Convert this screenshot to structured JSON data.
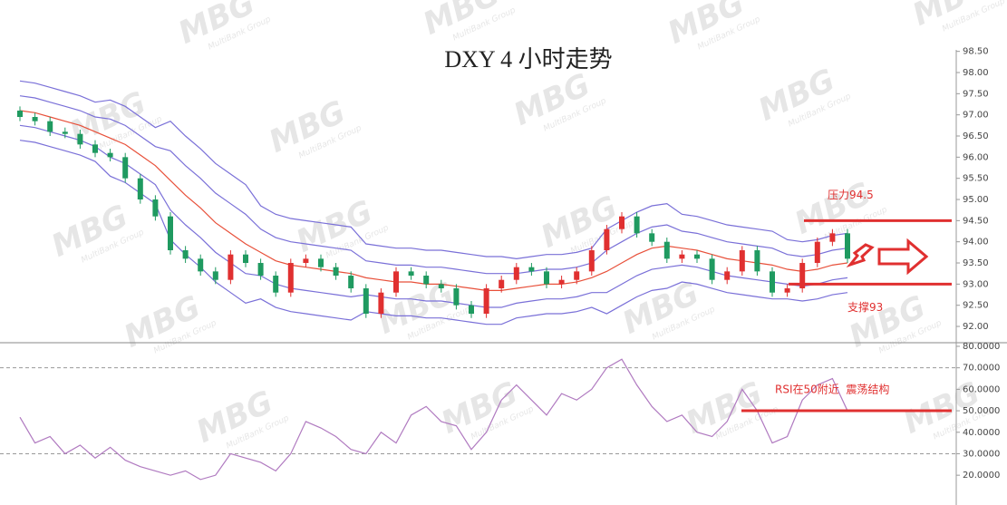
{
  "watermark": "MBG",
  "watermark_sub": "MultiBank Group",
  "chart_data": [
    {
      "type": "candlestick",
      "title": "DXY 4 小时走势",
      "ylim": [
        91.6,
        98.6
      ],
      "yticks": [
        {
          "value": 92,
          "label": "92.00"
        },
        {
          "value": 92.5,
          "label": "92.50"
        },
        {
          "value": 93,
          "label": "93.00"
        },
        {
          "value": 93.5,
          "label": "93.50"
        },
        {
          "value": 94,
          "label": "94.00"
        },
        {
          "value": 94.5,
          "label": "94.50"
        },
        {
          "value": 95,
          "label": "95.00"
        },
        {
          "value": 95.5,
          "label": "95.50"
        },
        {
          "value": 96,
          "label": "96.00"
        },
        {
          "value": 96.5,
          "label": "96.50"
        },
        {
          "value": 97,
          "label": "97.00"
        },
        {
          "value": 97.5,
          "label": "97.50"
        },
        {
          "value": 98,
          "label": "98.00"
        },
        {
          "value": 98.5,
          "label": "98.50"
        }
      ],
      "up_color": "#e03030",
      "down_color": "#1f9a60",
      "open": [
        97.1,
        96.95,
        96.85,
        96.6,
        96.55,
        96.3,
        96.1,
        96.0,
        95.5,
        95.0,
        94.6,
        93.8,
        93.6,
        93.3,
        93.1,
        93.7,
        93.5,
        93.2,
        92.8,
        93.5,
        93.6,
        93.4,
        93.2,
        92.9,
        92.3,
        92.8,
        93.3,
        93.2,
        93.0,
        92.9,
        92.5,
        92.3,
        92.9,
        93.1,
        93.4,
        93.3,
        93.0,
        93.1,
        93.3,
        93.8,
        94.3,
        94.6,
        94.2,
        94.0,
        93.6,
        93.7,
        93.6,
        93.1,
        93.3,
        93.8,
        93.3,
        92.8,
        92.9,
        93.5,
        94.0,
        94.2
      ],
      "high": [
        97.2,
        97.05,
        96.95,
        96.7,
        96.65,
        96.4,
        96.2,
        96.1,
        95.6,
        95.1,
        94.7,
        93.9,
        93.7,
        93.4,
        93.8,
        93.8,
        93.6,
        93.3,
        93.6,
        93.7,
        93.7,
        93.5,
        93.3,
        93.0,
        92.9,
        93.4,
        93.4,
        93.3,
        93.1,
        93.0,
        92.6,
        93.0,
        93.2,
        93.5,
        93.5,
        93.4,
        93.2,
        93.4,
        93.9,
        94.4,
        94.7,
        94.7,
        94.3,
        94.1,
        93.8,
        93.8,
        93.7,
        93.4,
        93.9,
        93.9,
        93.4,
        93.0,
        93.6,
        94.1,
        94.3,
        94.3
      ],
      "low": [
        96.85,
        96.75,
        96.5,
        96.45,
        96.2,
        96.0,
        95.9,
        95.4,
        94.9,
        94.5,
        93.7,
        93.5,
        93.2,
        93.0,
        93.0,
        93.4,
        93.1,
        92.7,
        92.7,
        93.4,
        93.3,
        93.1,
        92.8,
        92.2,
        92.2,
        92.7,
        93.1,
        92.9,
        92.8,
        92.4,
        92.2,
        92.2,
        92.8,
        93.0,
        93.2,
        92.9,
        92.9,
        93.0,
        93.2,
        93.7,
        94.2,
        94.1,
        93.9,
        93.5,
        93.5,
        93.5,
        93.0,
        93.0,
        93.2,
        93.2,
        92.7,
        92.7,
        92.8,
        93.4,
        93.9,
        93.5
      ],
      "close": [
        96.95,
        96.85,
        96.6,
        96.55,
        96.3,
        96.1,
        96.0,
        95.5,
        95.0,
        94.6,
        93.8,
        93.6,
        93.3,
        93.1,
        93.7,
        93.5,
        93.2,
        92.8,
        93.5,
        93.6,
        93.4,
        93.2,
        92.9,
        92.3,
        92.8,
        93.3,
        93.2,
        93.0,
        92.9,
        92.5,
        92.3,
        92.9,
        93.1,
        93.4,
        93.3,
        93.0,
        93.1,
        93.3,
        93.8,
        94.3,
        94.6,
        94.2,
        94.0,
        93.6,
        93.7,
        93.6,
        93.1,
        93.3,
        93.8,
        93.3,
        92.8,
        92.9,
        93.5,
        94.0,
        94.2,
        93.6
      ],
      "lines": [
        {
          "color": "#7a70d8",
          "values": [
            97.8,
            97.75,
            97.65,
            97.55,
            97.45,
            97.3,
            97.35,
            97.2,
            96.95,
            96.7,
            96.85,
            96.5,
            96.2,
            95.85,
            95.6,
            95.35,
            94.85,
            94.65,
            94.55,
            94.5,
            94.45,
            94.4,
            94.35,
            93.95,
            93.9,
            93.85,
            93.85,
            93.8,
            93.8,
            93.75,
            93.7,
            93.65,
            93.65,
            93.6,
            93.65,
            93.7,
            93.7,
            93.75,
            93.85,
            94.3,
            94.5,
            94.7,
            94.85,
            94.9,
            94.65,
            94.6,
            94.5,
            94.4,
            94.35,
            94.3,
            94.25,
            94.05,
            94.0,
            94.05,
            94.15,
            94.2
          ]
        },
        {
          "color": "#7a70d8",
          "values": [
            97.45,
            97.4,
            97.3,
            97.2,
            97.1,
            96.95,
            96.9,
            96.75,
            96.5,
            96.25,
            96.15,
            95.8,
            95.5,
            95.15,
            94.9,
            94.65,
            94.3,
            94.1,
            94.0,
            93.95,
            93.9,
            93.85,
            93.8,
            93.55,
            93.5,
            93.45,
            93.45,
            93.4,
            93.4,
            93.35,
            93.3,
            93.25,
            93.25,
            93.25,
            93.3,
            93.35,
            93.35,
            93.4,
            93.5,
            93.8,
            94.0,
            94.2,
            94.35,
            94.4,
            94.25,
            94.2,
            94.1,
            94.0,
            93.95,
            93.9,
            93.85,
            93.7,
            93.65,
            93.7,
            93.8,
            93.85
          ]
        },
        {
          "color": "#e8503a",
          "values": [
            97.1,
            97.05,
            96.95,
            96.85,
            96.75,
            96.6,
            96.45,
            96.3,
            96.05,
            95.8,
            95.45,
            95.1,
            94.8,
            94.45,
            94.2,
            93.95,
            93.75,
            93.55,
            93.45,
            93.4,
            93.35,
            93.3,
            93.25,
            93.15,
            93.1,
            93.05,
            93.05,
            93.0,
            93.0,
            92.95,
            92.9,
            92.85,
            92.85,
            92.9,
            92.95,
            93.0,
            93.0,
            93.05,
            93.15,
            93.3,
            93.5,
            93.7,
            93.85,
            93.9,
            93.85,
            93.8,
            93.7,
            93.6,
            93.55,
            93.5,
            93.45,
            93.35,
            93.3,
            93.35,
            93.45,
            93.5
          ]
        },
        {
          "color": "#7a70d8",
          "values": [
            96.75,
            96.7,
            96.6,
            96.5,
            96.4,
            96.25,
            96.0,
            95.85,
            95.6,
            95.35,
            94.75,
            94.4,
            94.1,
            93.75,
            93.5,
            93.25,
            93.2,
            93.0,
            92.9,
            92.85,
            92.8,
            92.75,
            92.7,
            92.75,
            92.7,
            92.65,
            92.65,
            92.6,
            92.6,
            92.55,
            92.5,
            92.45,
            92.45,
            92.55,
            92.6,
            92.65,
            92.65,
            92.7,
            92.8,
            92.8,
            93.0,
            93.2,
            93.35,
            93.4,
            93.45,
            93.4,
            93.3,
            93.2,
            93.15,
            93.1,
            93.05,
            93.0,
            92.95,
            93.0,
            93.1,
            93.15
          ]
        },
        {
          "color": "#7a70d8",
          "values": [
            96.4,
            96.35,
            96.25,
            96.15,
            96.05,
            95.9,
            95.55,
            95.4,
            95.15,
            94.9,
            94.05,
            93.7,
            93.4,
            93.05,
            92.8,
            92.55,
            92.65,
            92.45,
            92.35,
            92.3,
            92.25,
            92.2,
            92.15,
            92.35,
            92.3,
            92.25,
            92.25,
            92.2,
            92.2,
            92.15,
            92.1,
            92.05,
            92.05,
            92.2,
            92.25,
            92.3,
            92.3,
            92.35,
            92.45,
            92.3,
            92.5,
            92.7,
            92.85,
            92.9,
            93.05,
            93.0,
            92.9,
            92.8,
            92.75,
            92.7,
            92.65,
            92.65,
            92.6,
            92.65,
            92.75,
            92.8
          ]
        }
      ],
      "levels": [
        {
          "value": 94.5,
          "label": "压力94.5",
          "color": "#e03030"
        },
        {
          "value": 93,
          "label": "支撑93",
          "color": "#e03030"
        }
      ]
    },
    {
      "type": "line",
      "ylim": [
        15,
        81
      ],
      "yticks": [
        {
          "value": 20,
          "label": "20.0000"
        },
        {
          "value": 30,
          "label": "30.0000"
        },
        {
          "value": 40,
          "label": "40.0000"
        },
        {
          "value": 50,
          "label": "50.0000"
        },
        {
          "value": 60,
          "label": "60.0000"
        },
        {
          "value": 70,
          "label": "70.0000"
        },
        {
          "value": 80,
          "label": "80.0000"
        }
      ],
      "guides": [
        70,
        30
      ],
      "color": "#b07ac0",
      "values": [
        47,
        35,
        38,
        30,
        34,
        28,
        33,
        27,
        24,
        22,
        20,
        22,
        18,
        20,
        30,
        28,
        26,
        22,
        30,
        45,
        42,
        38,
        32,
        30,
        40,
        35,
        48,
        52,
        45,
        43,
        32,
        40,
        55,
        62,
        55,
        48,
        58,
        55,
        60,
        70,
        74,
        62,
        52,
        45,
        48,
        40,
        38,
        45,
        60,
        50,
        35,
        38,
        55,
        62,
        65,
        50
      ],
      "levels": [
        {
          "value": 50,
          "label": "RSI在50附近  震荡结构",
          "color": "#e03030"
        }
      ]
    }
  ]
}
